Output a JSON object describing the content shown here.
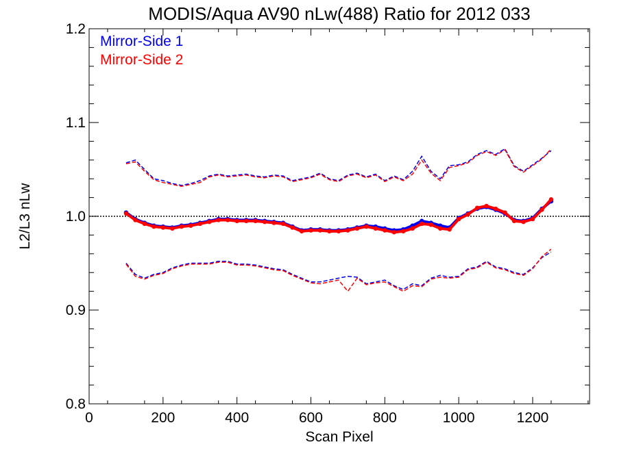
{
  "chart_data": {
    "type": "line",
    "title": "MODIS/Aqua AV90 nLw(488) Ratio for 2012 033",
    "xlabel": "Scan Pixel",
    "ylabel": "L2/L3 nLw",
    "xlim": [
      0,
      1354
    ],
    "ylim": [
      0.8,
      1.2
    ],
    "x_ticks": [
      "0",
      "200",
      "400",
      "600",
      "800",
      "1000",
      "1200"
    ],
    "y_ticks": [
      "0.8",
      "0.9",
      "1.0",
      "1.1",
      "1.2"
    ],
    "reference_line": 1.0,
    "legend_position": "top-left",
    "colors": {
      "ms1": "#0000ee",
      "ms2": "#ff0000",
      "reference": "#000000"
    },
    "series": [
      {
        "name": "Mirror-Side 1",
        "color": "#0000ee",
        "x": [
          100,
          125,
          150,
          175,
          200,
          225,
          250,
          275,
          300,
          325,
          350,
          375,
          400,
          425,
          450,
          475,
          500,
          525,
          550,
          575,
          600,
          625,
          650,
          675,
          700,
          725,
          750,
          775,
          800,
          825,
          850,
          875,
          900,
          925,
          950,
          975,
          1000,
          1025,
          1050,
          1075,
          1100,
          1125,
          1150,
          1175,
          1200,
          1225,
          1250
        ],
        "mean": [
          1.004,
          0.997,
          0.993,
          0.99,
          0.989,
          0.988,
          0.99,
          0.991,
          0.993,
          0.995,
          0.997,
          0.997,
          0.996,
          0.996,
          0.996,
          0.995,
          0.994,
          0.993,
          0.989,
          0.985,
          0.986,
          0.986,
          0.985,
          0.985,
          0.986,
          0.988,
          0.99,
          0.989,
          0.987,
          0.985,
          0.986,
          0.99,
          0.995,
          0.993,
          0.99,
          0.988,
          0.998,
          1.003,
          1.008,
          1.01,
          1.007,
          1.003,
          0.996,
          0.995,
          0.998,
          1.008,
          1.016
        ],
        "upper": [
          1.057,
          1.06,
          1.05,
          1.04,
          1.038,
          1.035,
          1.033,
          1.035,
          1.038,
          1.043,
          1.045,
          1.043,
          1.044,
          1.045,
          1.043,
          1.042,
          1.044,
          1.043,
          1.038,
          1.04,
          1.042,
          1.046,
          1.04,
          1.038,
          1.044,
          1.046,
          1.042,
          1.045,
          1.038,
          1.043,
          1.039,
          1.048,
          1.064,
          1.048,
          1.04,
          1.054,
          1.055,
          1.058,
          1.066,
          1.07,
          1.066,
          1.072,
          1.054,
          1.048,
          1.055,
          1.062,
          1.07
        ],
        "lower": [
          0.95,
          0.938,
          0.934,
          0.938,
          0.94,
          0.945,
          0.948,
          0.95,
          0.95,
          0.95,
          0.952,
          0.952,
          0.949,
          0.949,
          0.948,
          0.946,
          0.944,
          0.943,
          0.938,
          0.934,
          0.93,
          0.93,
          0.932,
          0.934,
          0.936,
          0.935,
          0.928,
          0.93,
          0.932,
          0.926,
          0.922,
          0.928,
          0.926,
          0.934,
          0.937,
          0.935,
          0.936,
          0.944,
          0.946,
          0.952,
          0.946,
          0.944,
          0.94,
          0.938,
          0.945,
          0.956,
          0.962
        ]
      },
      {
        "name": "Mirror-Side 2",
        "color": "#ff0000",
        "x": [
          100,
          125,
          150,
          175,
          200,
          225,
          250,
          275,
          300,
          325,
          350,
          375,
          400,
          425,
          450,
          475,
          500,
          525,
          550,
          575,
          600,
          625,
          650,
          675,
          700,
          725,
          750,
          775,
          800,
          825,
          850,
          875,
          900,
          925,
          950,
          975,
          1000,
          1025,
          1050,
          1075,
          1100,
          1125,
          1150,
          1175,
          1200,
          1225,
          1250
        ],
        "mean": [
          1.003,
          0.996,
          0.992,
          0.989,
          0.988,
          0.987,
          0.989,
          0.99,
          0.992,
          0.994,
          0.996,
          0.996,
          0.995,
          0.995,
          0.995,
          0.994,
          0.993,
          0.992,
          0.988,
          0.984,
          0.985,
          0.985,
          0.984,
          0.984,
          0.985,
          0.987,
          0.989,
          0.987,
          0.985,
          0.983,
          0.984,
          0.987,
          0.992,
          0.991,
          0.987,
          0.986,
          0.997,
          1.002,
          1.009,
          1.011,
          1.008,
          1.004,
          0.995,
          0.994,
          0.997,
          1.007,
          1.018
        ],
        "upper": [
          1.056,
          1.058,
          1.048,
          1.039,
          1.036,
          1.034,
          1.032,
          1.034,
          1.036,
          1.042,
          1.044,
          1.042,
          1.043,
          1.044,
          1.042,
          1.041,
          1.043,
          1.042,
          1.037,
          1.039,
          1.041,
          1.045,
          1.039,
          1.037,
          1.043,
          1.045,
          1.041,
          1.044,
          1.037,
          1.042,
          1.038,
          1.045,
          1.06,
          1.046,
          1.038,
          1.052,
          1.054,
          1.057,
          1.065,
          1.069,
          1.065,
          1.071,
          1.053,
          1.047,
          1.054,
          1.061,
          1.072
        ],
        "lower": [
          0.949,
          0.936,
          0.933,
          0.937,
          0.939,
          0.944,
          0.947,
          0.949,
          0.949,
          0.949,
          0.951,
          0.951,
          0.948,
          0.948,
          0.947,
          0.945,
          0.943,
          0.942,
          0.937,
          0.933,
          0.929,
          0.928,
          0.93,
          0.932,
          0.92,
          0.934,
          0.927,
          0.929,
          0.93,
          0.925,
          0.92,
          0.926,
          0.925,
          0.933,
          0.935,
          0.934,
          0.935,
          0.943,
          0.945,
          0.951,
          0.945,
          0.943,
          0.939,
          0.937,
          0.944,
          0.957,
          0.965
        ]
      }
    ]
  }
}
